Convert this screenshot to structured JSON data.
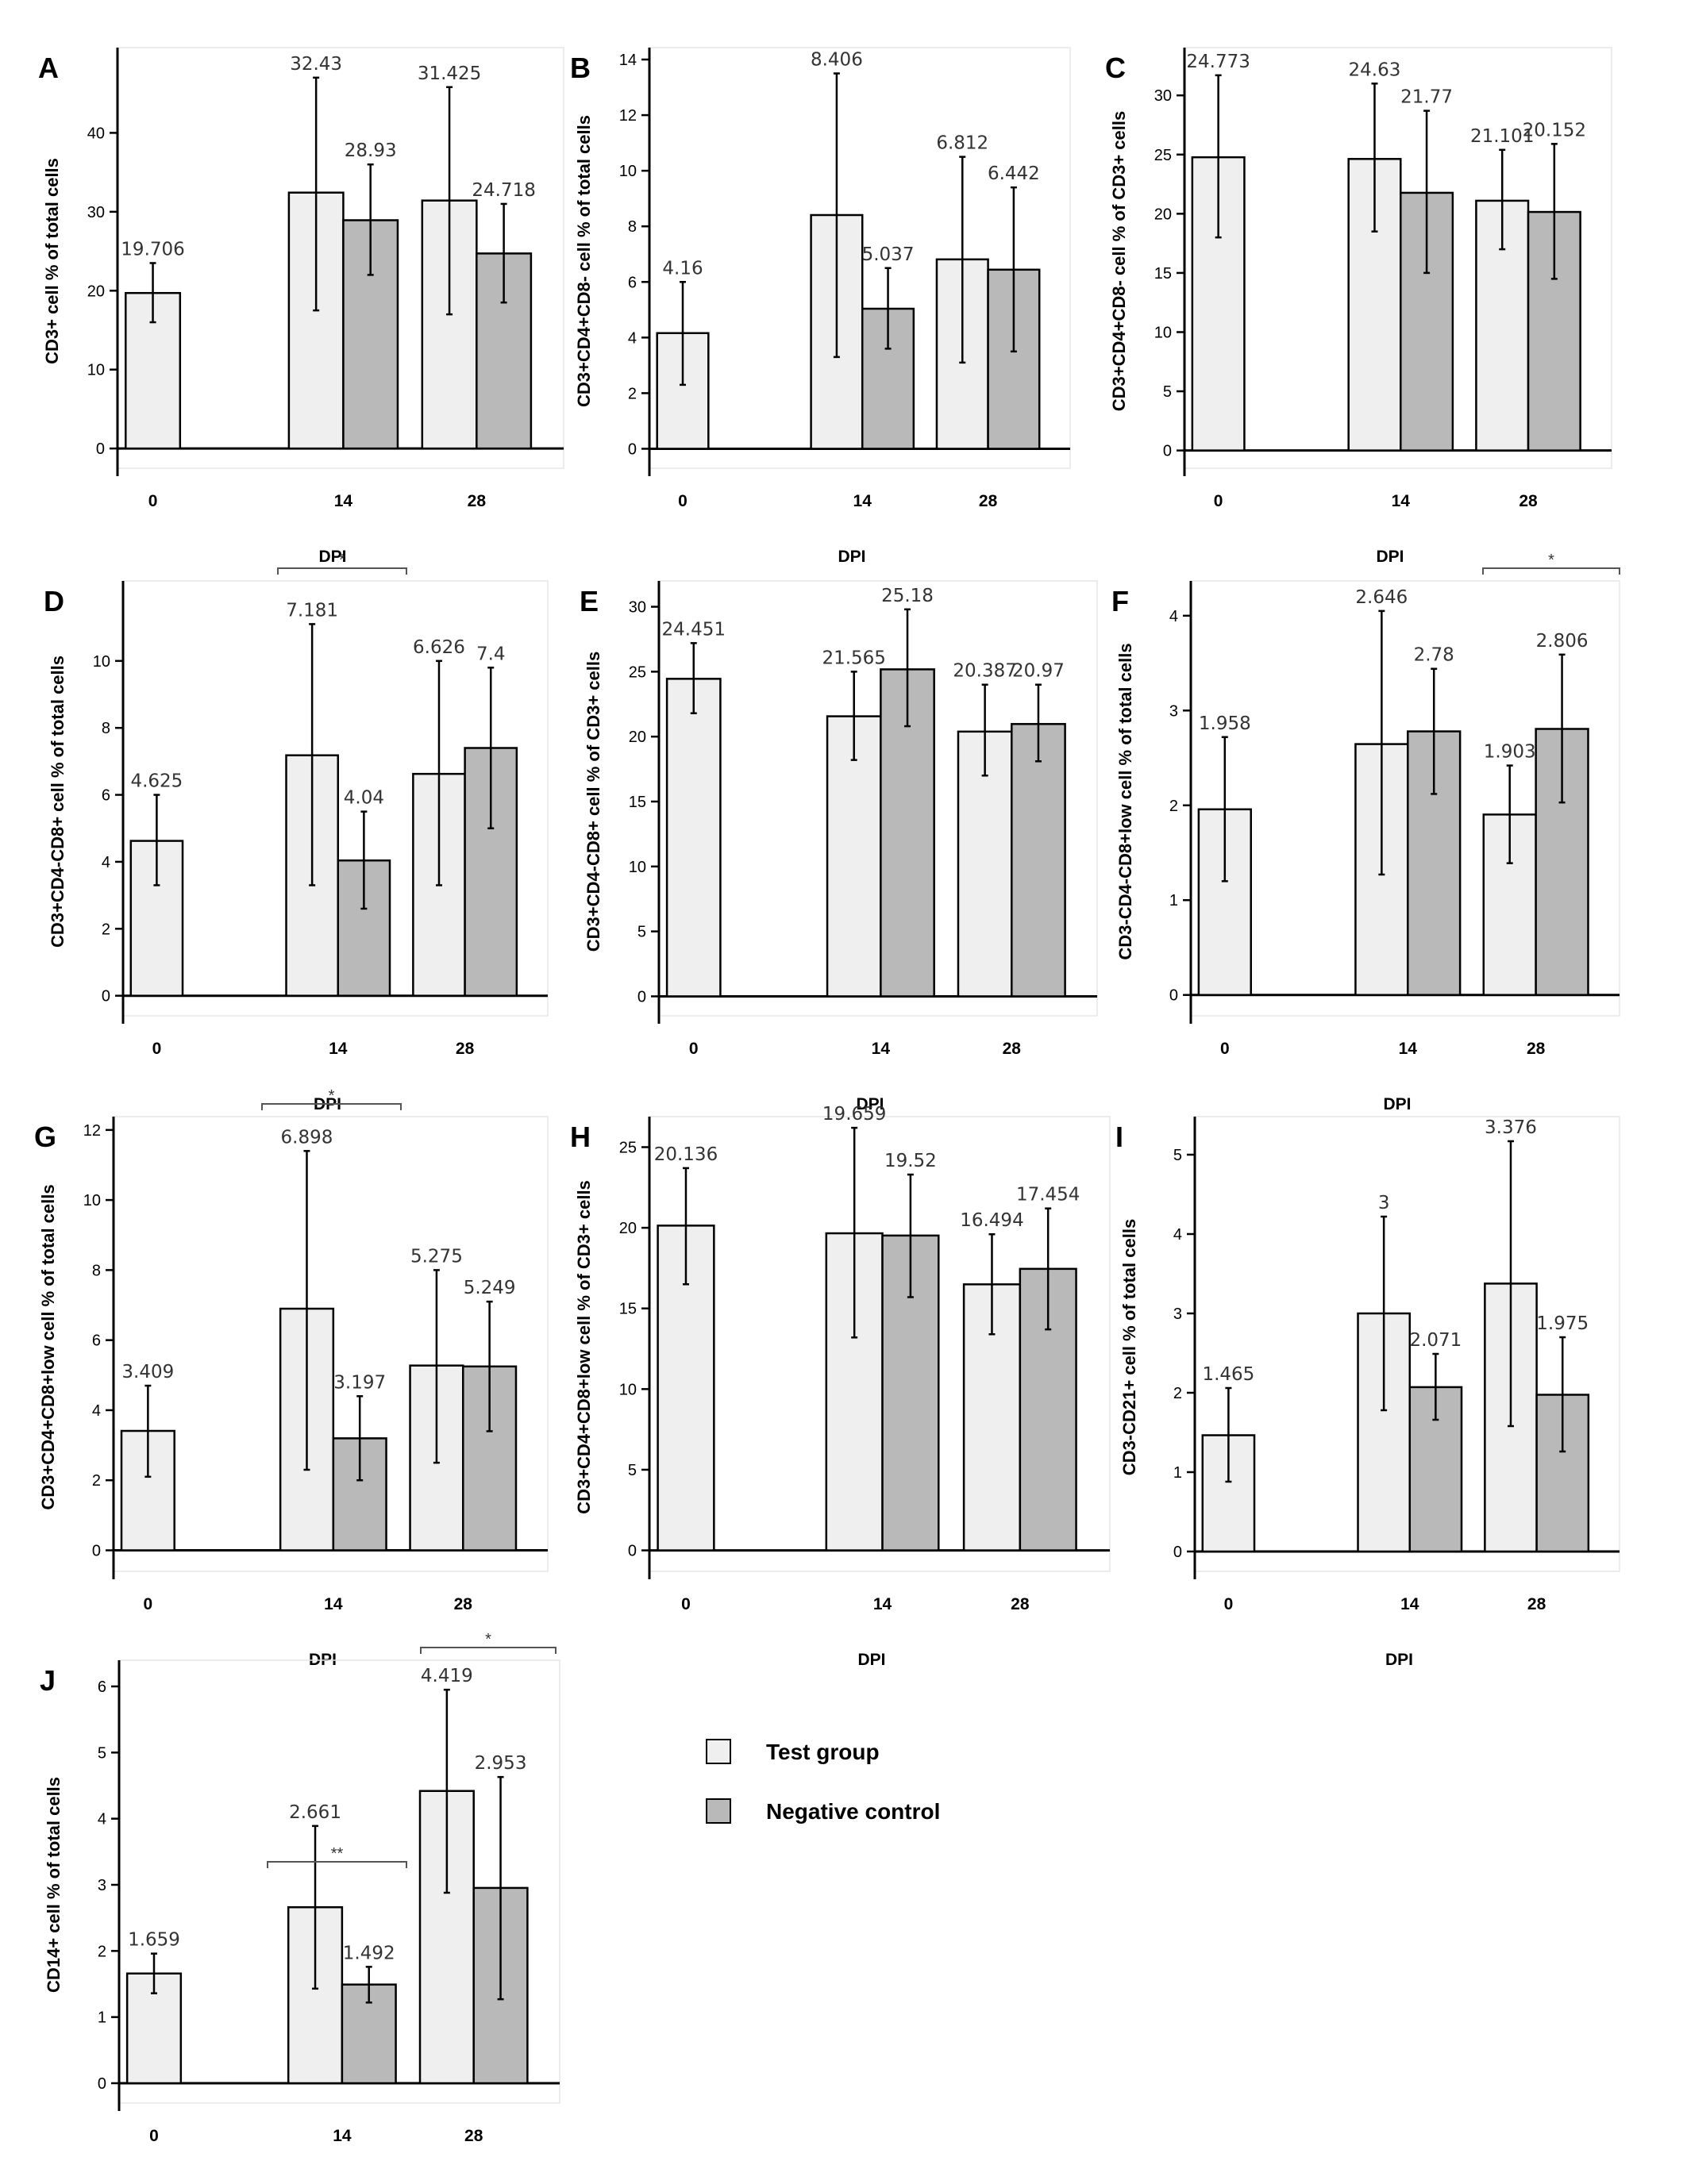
{
  "legend": {
    "series": [
      {
        "name": "Test group",
        "color": "#efefef"
      },
      {
        "name": "Negative control",
        "color": "#b9b9b9"
      }
    ]
  },
  "chart_data": [
    {
      "type": "bar",
      "panel": "A",
      "categories": [
        "0",
        "14",
        "28"
      ],
      "xlabel": "DPI",
      "ylabel": "CD3+ cell % of total cells",
      "ylim": [
        -2.5,
        50
      ],
      "yticks": [
        0,
        10,
        20,
        30,
        40
      ],
      "series": [
        {
          "name": "Test group",
          "values": [
            19.706,
            32.43,
            31.425
          ],
          "labels": [
            "19.706",
            "32.43",
            "31.425"
          ],
          "err": [
            [
              16.0,
              23.5
            ],
            [
              17.5,
              47.0
            ],
            [
              17.0,
              45.8
            ]
          ]
        },
        {
          "name": "Negative control",
          "values": [
            null,
            28.93,
            24.718
          ],
          "labels": [
            null,
            "28.93",
            "24.718"
          ],
          "err": [
            null,
            [
              22.0,
              36.0
            ],
            [
              18.5,
              31.0
            ]
          ]
        }
      ],
      "significance": []
    },
    {
      "type": "bar",
      "panel": "B",
      "categories": [
        "0",
        "14",
        "28"
      ],
      "xlabel": "DPI",
      "ylabel": "CD3+CD4+CD8- cell % of total cells",
      "ylim": [
        -0.7,
        14.2
      ],
      "yticks": [
        0,
        2,
        4,
        6,
        8,
        10,
        12,
        14
      ],
      "series": [
        {
          "name": "Test group",
          "values": [
            4.16,
            8.406,
            6.812
          ],
          "labels": [
            "4.16",
            "8.406",
            "6.812"
          ],
          "err": [
            [
              2.3,
              6.0
            ],
            [
              3.3,
              13.5
            ],
            [
              3.1,
              10.5
            ]
          ]
        },
        {
          "name": "Negative control",
          "values": [
            null,
            5.037,
            6.442
          ],
          "labels": [
            null,
            "5.037",
            "6.442"
          ],
          "err": [
            null,
            [
              3.6,
              6.5
            ],
            [
              3.5,
              9.4
            ]
          ]
        }
      ],
      "significance": []
    },
    {
      "type": "bar",
      "panel": "C",
      "categories": [
        "0",
        "14",
        "28"
      ],
      "xlabel": "DPI",
      "ylabel": "CD3+CD4+CD8- cell % of CD3+ cells",
      "ylim": [
        -1.5,
        33.5
      ],
      "yticks": [
        0,
        5,
        10,
        15,
        20,
        25,
        30
      ],
      "series": [
        {
          "name": "Test group",
          "values": [
            24.773,
            24.63,
            21.101
          ],
          "labels": [
            "24.773",
            "24.63",
            "21.101"
          ],
          "err": [
            [
              18.0,
              31.7
            ],
            [
              18.5,
              31.0
            ],
            [
              17.0,
              25.4
            ]
          ]
        },
        {
          "name": "Negative control",
          "values": [
            null,
            21.77,
            20.152
          ],
          "labels": [
            null,
            "21.77",
            "20.152"
          ],
          "err": [
            null,
            [
              15.0,
              28.7
            ],
            [
              14.5,
              25.9
            ]
          ]
        }
      ],
      "significance": []
    },
    {
      "type": "bar",
      "panel": "D",
      "categories": [
        "0",
        "14",
        "28"
      ],
      "xlabel": "DPI",
      "ylabel": "CD3+CD4-CD8+ cell % of total cells",
      "ylim": [
        -0.6,
        12.2
      ],
      "yticks": [
        0,
        2,
        4,
        6,
        8,
        10
      ],
      "series": [
        {
          "name": "Test group",
          "values": [
            4.625,
            7.181,
            6.626
          ],
          "labels": [
            "4.625",
            "7.181",
            "6.626"
          ],
          "err": [
            [
              3.3,
              6.0
            ],
            [
              3.3,
              11.1
            ],
            [
              3.3,
              10.0
            ]
          ]
        },
        {
          "name": "Negative control",
          "values": [
            null,
            4.04,
            7.4
          ],
          "labels": [
            null,
            "4.04",
            "7.4"
          ],
          "err": [
            null,
            [
              2.6,
              5.5
            ],
            [
              5.0,
              9.8
            ]
          ]
        }
      ],
      "significance": [
        {
          "label": "*",
          "from": "14",
          "to": "28"
        }
      ]
    },
    {
      "type": "bar",
      "panel": "E",
      "categories": [
        "0",
        "14",
        "28"
      ],
      "xlabel": "DPI",
      "ylabel": "CD3+CD4-CD8+ cell % of CD3+ cells",
      "ylim": [
        -1.5,
        31.5
      ],
      "yticks": [
        0,
        5,
        10,
        15,
        20,
        25,
        30
      ],
      "series": [
        {
          "name": "Test group",
          "values": [
            24.451,
            21.565,
            20.387
          ],
          "labels": [
            "24.451",
            "21.565",
            "20.387"
          ],
          "err": [
            [
              21.8,
              27.2
            ],
            [
              18.2,
              25.0
            ],
            [
              17.0,
              24.0
            ]
          ]
        },
        {
          "name": "Negative control",
          "values": [
            null,
            25.18,
            20.97
          ],
          "labels": [
            null,
            "25.18",
            "20.97"
          ],
          "err": [
            null,
            [
              20.8,
              29.8
            ],
            [
              18.1,
              24.0
            ]
          ]
        }
      ],
      "significance": []
    },
    {
      "type": "bar",
      "panel": "F",
      "categories": [
        "0",
        "14",
        "28"
      ],
      "xlabel": "DPI",
      "ylabel": "CD3-CD4-CD8+low cell % of total cells",
      "ylim": [
        -0.22,
        4.3
      ],
      "yticks": [
        0,
        1,
        2,
        3,
        4
      ],
      "series": [
        {
          "name": "Test group",
          "values": [
            1.958,
            2.646,
            1.903
          ],
          "labels": [
            "1.958",
            "2.646",
            "1.903"
          ],
          "err": [
            [
              1.2,
              2.72
            ],
            [
              1.27,
              4.05
            ],
            [
              1.39,
              2.42
            ]
          ]
        },
        {
          "name": "Negative control",
          "values": [
            null,
            2.78,
            2.806
          ],
          "labels": [
            null,
            "2.78",
            "2.806"
          ],
          "err": [
            null,
            [
              2.12,
              3.44
            ],
            [
              2.03,
              3.59
            ]
          ]
        }
      ],
      "significance": [
        {
          "label": "*",
          "from": "28",
          "to": "28end"
        }
      ]
    },
    {
      "type": "bar",
      "panel": "G",
      "categories": [
        "0",
        "14",
        "28"
      ],
      "xlabel": "DPI",
      "ylabel": "CD3+CD4+CD8+low cell % of total cells",
      "ylim": [
        -0.6,
        12.2
      ],
      "yticks": [
        0,
        2,
        4,
        6,
        8,
        10,
        12
      ],
      "series": [
        {
          "name": "Test group",
          "values": [
            3.409,
            6.898,
            5.275
          ],
          "labels": [
            "3.409",
            "6.898",
            "5.275"
          ],
          "err": [
            [
              2.1,
              4.7
            ],
            [
              2.3,
              11.4
            ],
            [
              2.5,
              8.0
            ]
          ]
        },
        {
          "name": "Negative control",
          "values": [
            null,
            3.197,
            5.249
          ],
          "labels": [
            null,
            "3.197",
            "5.249"
          ],
          "err": [
            null,
            [
              2.0,
              4.4
            ],
            [
              3.4,
              7.1
            ]
          ]
        }
      ],
      "significance": [
        {
          "label": "*",
          "from": "14",
          "to": "28"
        }
      ]
    },
    {
      "type": "bar",
      "panel": "H",
      "categories": [
        "0",
        "14",
        "28"
      ],
      "xlabel": "DPI",
      "ylabel": "CD3+CD4+CD8+low cell % of CD3+ cells",
      "ylim": [
        -1.3,
        26.5
      ],
      "yticks": [
        0,
        5,
        10,
        15,
        20,
        25
      ],
      "series": [
        {
          "name": "Test group",
          "values": [
            20.136,
            19.659,
            16.494
          ],
          "labels": [
            "20.136",
            "19.659",
            "16.494"
          ],
          "err": [
            [
              16.5,
              23.7
            ],
            [
              13.2,
              26.2
            ],
            [
              13.4,
              19.6
            ]
          ]
        },
        {
          "name": "Negative control",
          "values": [
            null,
            19.52,
            17.454
          ],
          "labels": [
            null,
            "19.52",
            "17.454"
          ],
          "err": [
            null,
            [
              15.7,
              23.3
            ],
            [
              13.7,
              21.2
            ]
          ]
        }
      ],
      "significance": []
    },
    {
      "type": "bar",
      "panel": "I",
      "categories": [
        "0",
        "14",
        "28"
      ],
      "xlabel": "DPI",
      "ylabel": "CD3-CD21+ cell % of total cells",
      "ylim": [
        -0.25,
        5.4
      ],
      "yticks": [
        0,
        1,
        2,
        3,
        4,
        5
      ],
      "series": [
        {
          "name": "Test group",
          "values": [
            1.465,
            3,
            3.376
          ],
          "labels": [
            "1.465",
            "3",
            "3.376"
          ],
          "err": [
            [
              0.88,
              2.06
            ],
            [
              1.78,
              4.22
            ],
            [
              1.58,
              5.17
            ]
          ]
        },
        {
          "name": "Negative control",
          "values": [
            null,
            2.071,
            1.975
          ],
          "labels": [
            null,
            "2.071",
            "1.975"
          ],
          "err": [
            null,
            [
              1.66,
              2.49
            ],
            [
              1.26,
              2.7
            ]
          ]
        }
      ],
      "significance": []
    },
    {
      "type": "bar",
      "panel": "J",
      "categories": [
        "0",
        "14",
        "28"
      ],
      "xlabel": "DPI",
      "ylabel": "CD14+ cell % of total cells",
      "ylim": [
        -0.3,
        6.3
      ],
      "yticks": [
        0,
        1,
        2,
        3,
        4,
        5,
        6
      ],
      "series": [
        {
          "name": "Test group",
          "values": [
            1.659,
            2.661,
            4.419
          ],
          "labels": [
            "1.659",
            "2.661",
            "4.419"
          ],
          "err": [
            [
              1.36,
              1.96
            ],
            [
              1.43,
              3.89
            ],
            [
              2.88,
              5.95
            ]
          ]
        },
        {
          "name": "Negative control",
          "values": [
            null,
            1.492,
            2.953
          ],
          "labels": [
            null,
            "1.492",
            "2.953"
          ],
          "err": [
            null,
            [
              1.22,
              1.76
            ],
            [
              1.27,
              4.63
            ]
          ]
        }
      ],
      "significance": [
        {
          "label": "**",
          "from": "14",
          "to": "28"
        },
        {
          "label": "*",
          "from": "28",
          "to": "28end"
        }
      ]
    }
  ]
}
